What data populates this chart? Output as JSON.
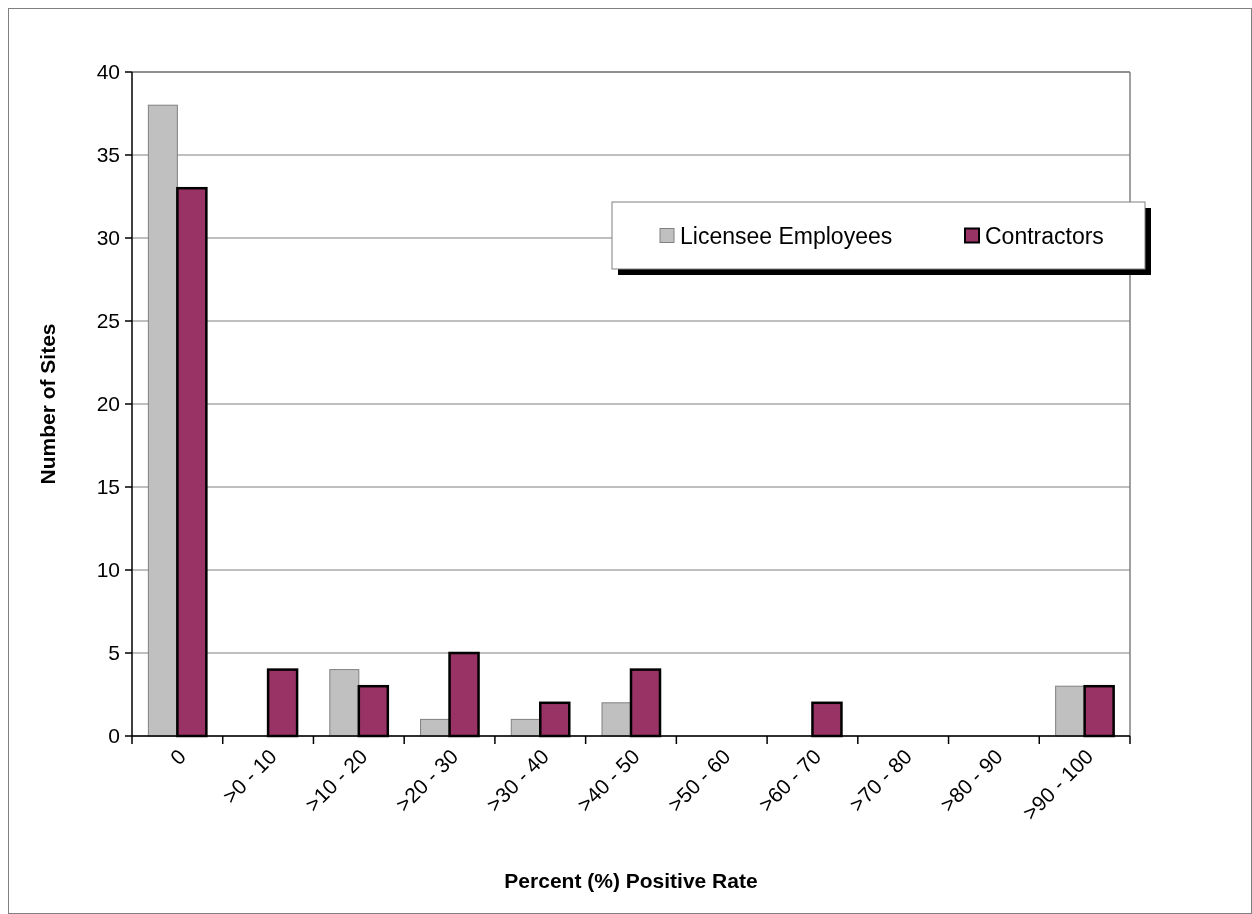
{
  "chart_data": {
    "type": "bar",
    "xlabel": "Percent (%) Positive Rate",
    "ylabel": "Number of Sites",
    "categories": [
      "0",
      ">0 - 10",
      ">10 - 20",
      ">20 - 30",
      ">30 - 40",
      ">40 - 50",
      ">50 - 60",
      ">60 - 70",
      ">70 - 80",
      ">80 - 90",
      ">90 - 100"
    ],
    "series": [
      {
        "name": "Licensee Employees",
        "color": "#c0c0c0",
        "values": [
          38,
          0,
          4,
          1,
          1,
          2,
          0,
          0,
          0,
          0,
          3
        ]
      },
      {
        "name": "Contractors",
        "color": "#993366",
        "values": [
          33,
          4,
          3,
          5,
          2,
          4,
          0,
          2,
          0,
          0,
          3
        ]
      }
    ],
    "ylim": [
      0,
      40
    ],
    "yticks": [
      0,
      5,
      10,
      15,
      20,
      25,
      30,
      35,
      40
    ],
    "grid": "y",
    "legend": "top right"
  }
}
